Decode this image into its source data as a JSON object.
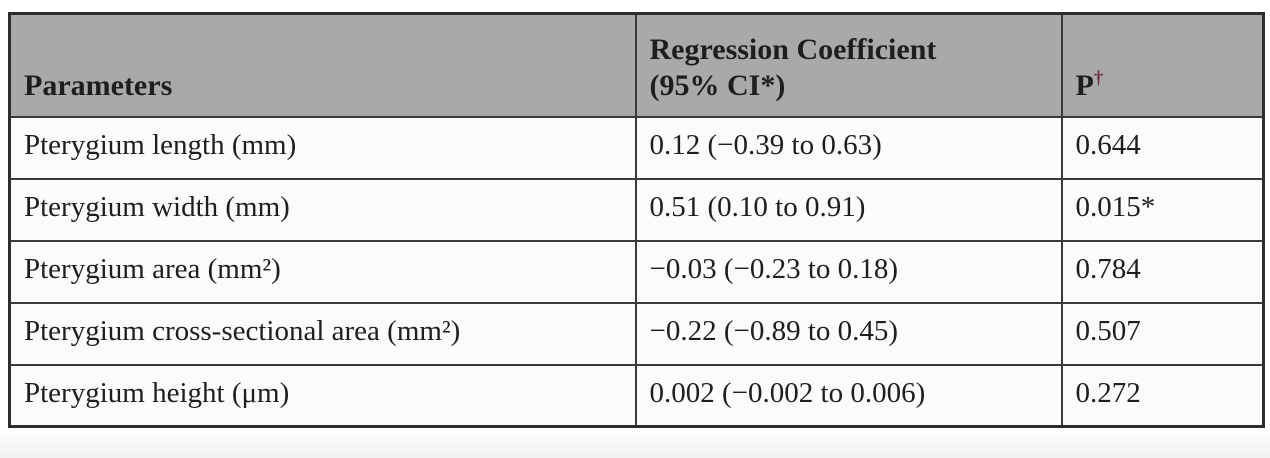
{
  "theme": {
    "header_bg": "#a9a9a9",
    "cell_bg": "#fbfbfb",
    "grid_line": "#3b3b3b",
    "outer_border": "#2d2d2d",
    "text": "#1e1e1e",
    "dagger_color": "#6d2b3f"
  },
  "table": {
    "header": {
      "parameters": "Parameters",
      "coefficient_line1": "Regression Coefficient",
      "coefficient_line2": "(95% CI*)",
      "p": "P",
      "p_dagger": "†"
    },
    "rows": [
      {
        "parameter": "Pterygium length (mm)",
        "coefficient": "0.12 (−0.39 to 0.63)",
        "p": "0.644"
      },
      {
        "parameter": "Pterygium width (mm)",
        "coefficient": "0.51 (0.10 to 0.91)",
        "p": "0.015*"
      },
      {
        "parameter": "Pterygium area (mm²)",
        "coefficient": "−0.03 (−0.23 to 0.18)",
        "p": "0.784"
      },
      {
        "parameter": "Pterygium cross-sectional area (mm²)",
        "coefficient": "−0.22 (−0.89 to 0.45)",
        "p": "0.507"
      },
      {
        "parameter": "Pterygium height (μm)",
        "coefficient": "0.002 (−0.002 to 0.006)",
        "p": "0.272"
      }
    ]
  }
}
